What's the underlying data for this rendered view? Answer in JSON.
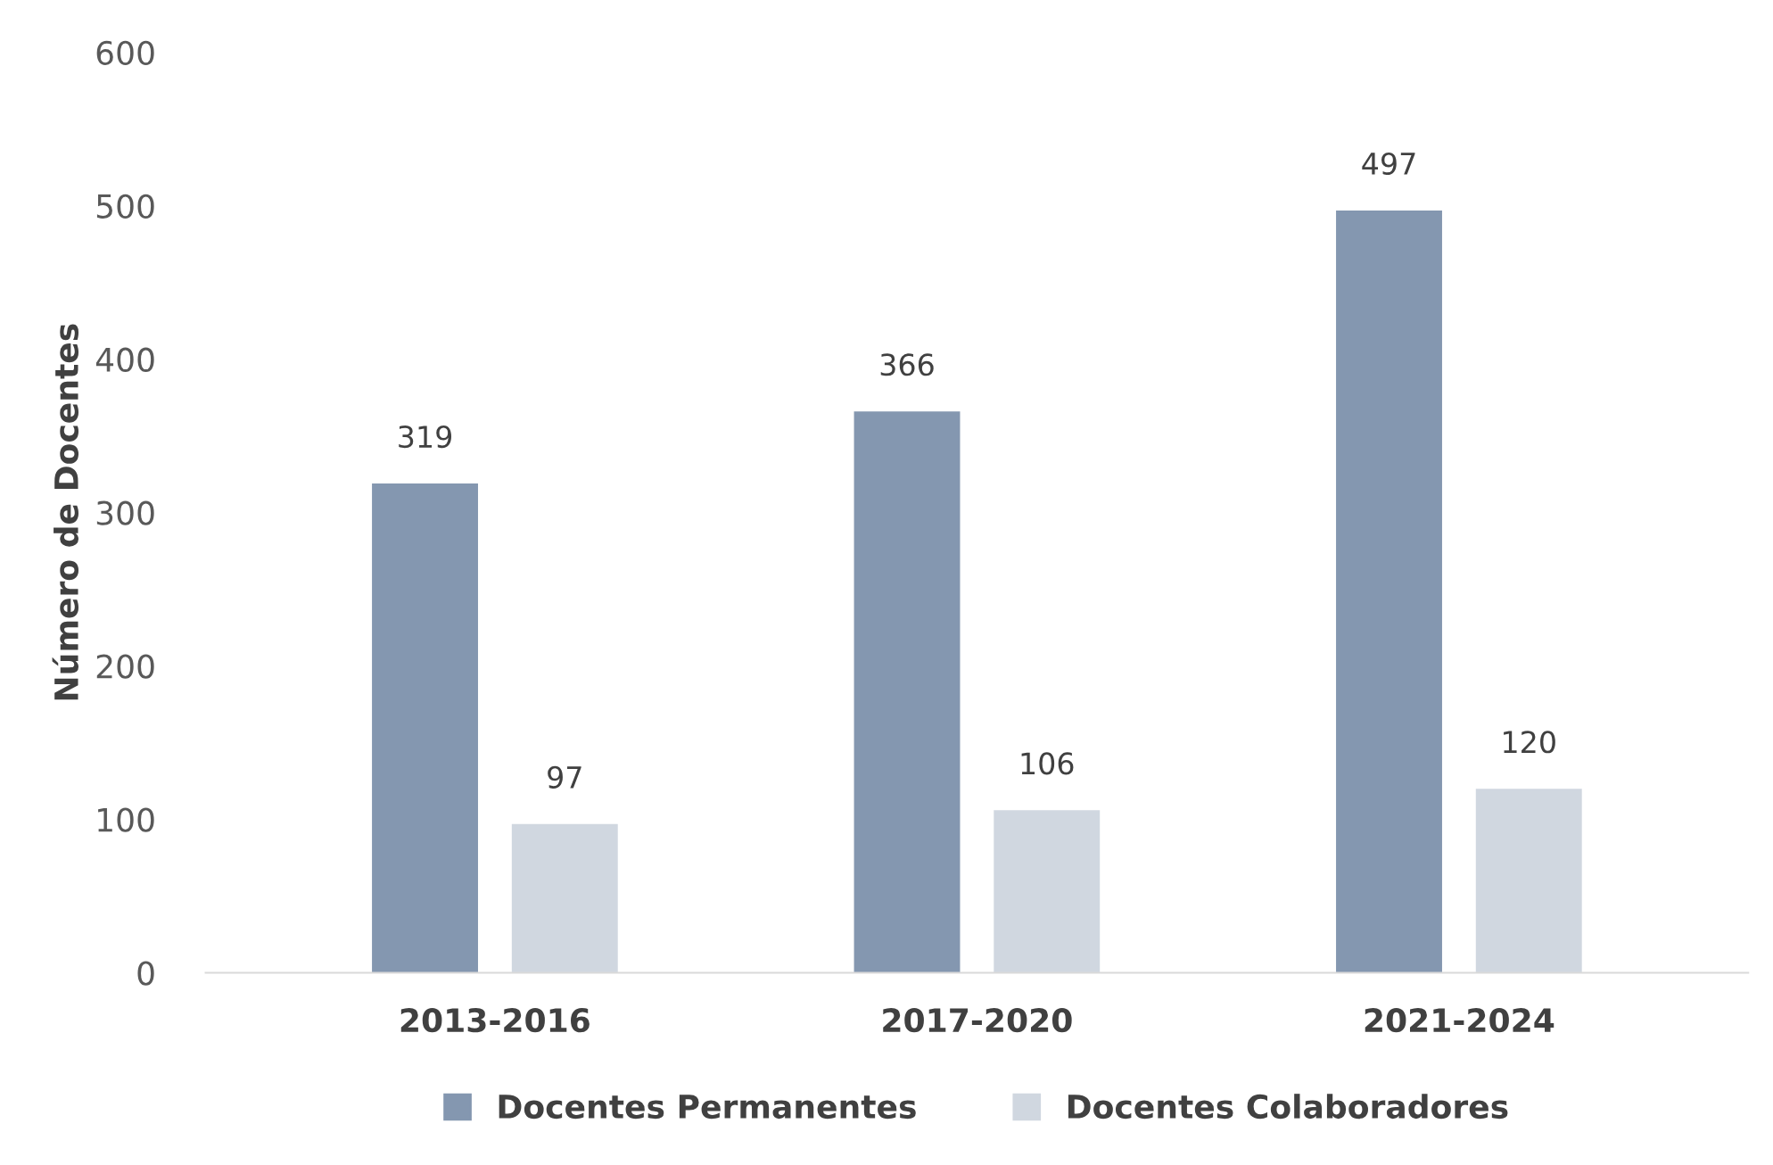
{
  "chart_data": {
    "type": "bar",
    "ylabel": "Número de Docentes",
    "categories": [
      "2013-2016",
      "2017-2020",
      "2021-2024"
    ],
    "series": [
      {
        "name": "Docentes Permanentes",
        "color": "#8497b0",
        "values": [
          319,
          366,
          497
        ]
      },
      {
        "name": "Docentes Colaboradores",
        "color": "#d0d7e0",
        "values": [
          97,
          106,
          120
        ]
      }
    ],
    "ylim": [
      0,
      600
    ],
    "yticks": [
      0,
      100,
      200,
      300,
      400,
      500,
      600
    ],
    "data_labels": true,
    "grid": false,
    "legend": "bottom"
  }
}
